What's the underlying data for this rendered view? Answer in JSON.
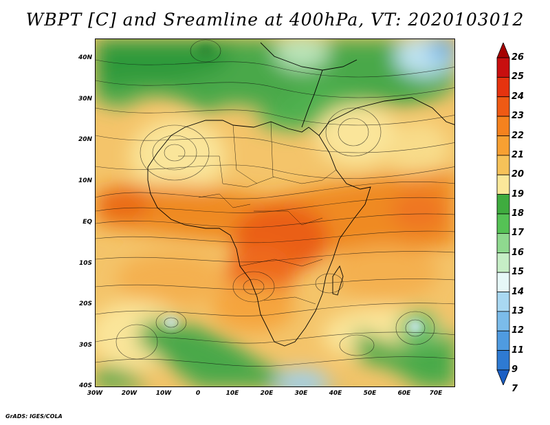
{
  "title": "WBPT [C] and Sreamline at 400hPa, VT: 2020103012",
  "credit": "GrADS: IGES/COLA",
  "map": {
    "lon_range": [
      -30,
      75
    ],
    "lat_range": [
      -40,
      45
    ],
    "lat_labels": [
      "40N",
      "30N",
      "20N",
      "10N",
      "EQ",
      "10S",
      "20S",
      "30S",
      "40S"
    ],
    "lat_values": [
      40,
      30,
      20,
      10,
      0,
      -10,
      -20,
      -30,
      -40
    ],
    "lon_labels": [
      "30W",
      "20W",
      "10W",
      "0",
      "10E",
      "20E",
      "30E",
      "40E",
      "50E",
      "60E",
      "70E"
    ],
    "lon_values": [
      -30,
      -20,
      -10,
      0,
      10,
      20,
      30,
      40,
      50,
      60,
      70
    ]
  },
  "colorbar": {
    "labels": [
      "26",
      "25",
      "24",
      "23",
      "22",
      "21",
      "20",
      "19",
      "18",
      "17",
      "16",
      "15",
      "14",
      "13",
      "12",
      "11",
      "9",
      "7"
    ],
    "colors": [
      "#a50000",
      "#c80f0f",
      "#e5330f",
      "#ef5a14",
      "#f5821e",
      "#f7a032",
      "#f6c259",
      "#fbe89a",
      "#3fac3f",
      "#55c255",
      "#8fd98f",
      "#c6eec6",
      "#e6f8f8",
      "#a9d8f2",
      "#7bbcea",
      "#4f9be0",
      "#2e7ad2",
      "#1b5fc4"
    ]
  }
}
